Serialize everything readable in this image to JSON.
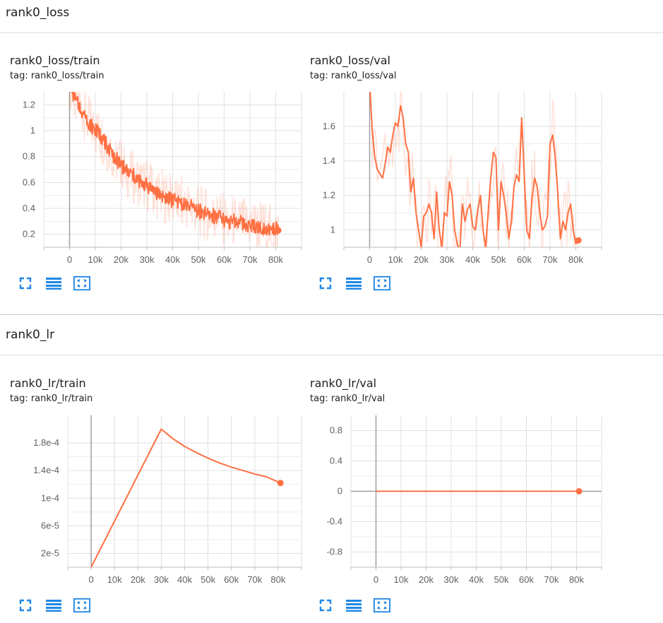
{
  "accent": "#ff7043",
  "icon_color": "#1e88e5",
  "sections": [
    {
      "title": "rank0_loss"
    },
    {
      "title": "rank0_lr"
    }
  ],
  "cards": [
    {
      "title": "rank0_loss/train",
      "tag": "tag: rank0_loss/train"
    },
    {
      "title": "rank0_loss/val",
      "tag": "tag: rank0_loss/val"
    },
    {
      "title": "rank0_lr/train",
      "tag": "tag: rank0_lr/train"
    },
    {
      "title": "rank0_lr/val",
      "tag": "tag: rank0_lr/val"
    }
  ],
  "card_buttons": [
    "fullscreen-icon",
    "data-table-icon",
    "fit-domain-icon"
  ],
  "chart_data": [
    {
      "type": "line",
      "title": "rank0_loss/train",
      "xlim": [
        -10000,
        90000
      ],
      "ylim": [
        0.1,
        1.3
      ],
      "x_ticks": [
        0,
        10000,
        20000,
        30000,
        40000,
        50000,
        60000,
        70000,
        80000
      ],
      "x_tick_labels": [
        "0",
        "10k",
        "20k",
        "30k",
        "40k",
        "50k",
        "60k",
        "70k",
        "80k"
      ],
      "y_ticks": [
        0.2,
        0.4,
        0.6,
        0.8,
        1,
        1.2
      ],
      "y_tick_labels": [
        "0.2",
        "0.4",
        "0.6",
        "0.8",
        "1",
        "1.2"
      ],
      "grid": true,
      "smoothed": true,
      "series": [
        {
          "x": [
            0,
            2000,
            4000,
            6000,
            8000,
            10000,
            12000,
            14000,
            16000,
            18000,
            20000,
            22000,
            24000,
            26000,
            28000,
            30000,
            32000,
            34000,
            36000,
            38000,
            40000,
            42000,
            44000,
            46000,
            48000,
            50000,
            52000,
            54000,
            56000,
            58000,
            60000,
            62000,
            64000,
            66000,
            68000,
            70000,
            72000,
            74000,
            76000,
            78000,
            80000,
            81000
          ],
          "values": [
            1.38,
            1.24,
            1.18,
            1.12,
            1.05,
            1.0,
            0.97,
            0.9,
            0.84,
            0.78,
            0.74,
            0.69,
            0.66,
            0.63,
            0.6,
            0.58,
            0.55,
            0.52,
            0.5,
            0.48,
            0.46,
            0.45,
            0.44,
            0.42,
            0.4,
            0.38,
            0.36,
            0.35,
            0.34,
            0.33,
            0.31,
            0.3,
            0.3,
            0.29,
            0.28,
            0.27,
            0.27,
            0.26,
            0.25,
            0.24,
            0.24,
            0.23
          ]
        }
      ]
    },
    {
      "type": "line",
      "title": "rank0_loss/val",
      "xlim": [
        -10000,
        90000
      ],
      "ylim": [
        0.9,
        1.8
      ],
      "x_ticks": [
        0,
        10000,
        20000,
        30000,
        40000,
        50000,
        60000,
        70000,
        80000
      ],
      "x_tick_labels": [
        "0",
        "10k",
        "20k",
        "30k",
        "40k",
        "50k",
        "60k",
        "70k",
        "80k"
      ],
      "y_ticks": [
        1,
        1.2,
        1.4,
        1.6
      ],
      "y_tick_labels": [
        "1",
        "1.2",
        "1.4",
        "1.6"
      ],
      "grid": true,
      "smoothed": true,
      "series": [
        {
          "x": [
            0,
            1000,
            2000,
            3000,
            5000,
            6000,
            7000,
            8000,
            9000,
            10000,
            11000,
            12000,
            13000,
            14000,
            15000,
            16000,
            17000,
            18000,
            19000,
            20000,
            21000,
            22000,
            23000,
            24000,
            25000,
            26000,
            27000,
            28000,
            29000,
            30000,
            31000,
            32000,
            33000,
            34000,
            35000,
            36000,
            37000,
            38000,
            39000,
            40000,
            41000,
            42000,
            43000,
            44000,
            45000,
            46000,
            47000,
            48000,
            49000,
            50000,
            51000,
            52000,
            53000,
            54000,
            55000,
            56000,
            57000,
            58000,
            59000,
            60000,
            61000,
            62000,
            63000,
            64000,
            65000,
            66000,
            67000,
            68000,
            69000,
            70000,
            71000,
            72000,
            73000,
            74000,
            75000,
            76000,
            77000,
            78000,
            79000,
            80000,
            81000
          ],
          "values": [
            1.85,
            1.58,
            1.42,
            1.35,
            1.3,
            1.38,
            1.48,
            1.45,
            1.55,
            1.62,
            1.6,
            1.72,
            1.65,
            1.5,
            1.45,
            1.22,
            1.3,
            1.1,
            1.0,
            0.9,
            1.08,
            1.1,
            1.15,
            1.1,
            0.95,
            1.22,
            1.0,
            0.9,
            1.1,
            1.08,
            1.28,
            1.2,
            1.0,
            0.92,
            0.88,
            1.15,
            1.05,
            1.12,
            1.15,
            1.02,
            1.0,
            1.12,
            1.2,
            1.0,
            0.9,
            1.1,
            1.3,
            1.45,
            1.42,
            1.0,
            1.28,
            1.2,
            1.1,
            0.95,
            1.05,
            1.25,
            1.32,
            1.28,
            1.65,
            1.32,
            1.0,
            0.95,
            1.18,
            1.3,
            1.25,
            1.1,
            1.0,
            1.02,
            1.08,
            1.5,
            1.55,
            1.42,
            1.22,
            0.95,
            1.05,
            1.0,
            1.1,
            1.15,
            1.0,
            0.92,
            0.94
          ]
        }
      ]
    },
    {
      "type": "line",
      "title": "rank0_lr/train",
      "xlim": [
        -10000,
        90000
      ],
      "ylim": [
        0,
        0.00022
      ],
      "x_ticks": [
        0,
        10000,
        20000,
        30000,
        40000,
        50000,
        60000,
        70000,
        80000
      ],
      "x_tick_labels": [
        "0",
        "10k",
        "20k",
        "30k",
        "40k",
        "50k",
        "60k",
        "70k",
        "80k"
      ],
      "y_ticks": [
        2e-05,
        6e-05,
        0.0001,
        0.00014,
        0.00018
      ],
      "y_tick_labels": [
        "2e-5",
        "6e-5",
        "1e-4",
        "1.4e-4",
        "1.8e-4"
      ],
      "grid": true,
      "series": [
        {
          "x": [
            0,
            30000,
            35000,
            40000,
            45000,
            50000,
            55000,
            60000,
            65000,
            70000,
            75000,
            81000
          ],
          "values": [
            0,
            0.0002,
            0.000186,
            0.000175,
            0.000166,
            0.000158,
            0.000151,
            0.000145,
            0.00014,
            0.000135,
            0.000131,
            0.000122
          ]
        }
      ]
    },
    {
      "type": "line",
      "title": "rank0_lr/val",
      "xlim": [
        -10000,
        90000
      ],
      "ylim": [
        -1,
        1
      ],
      "x_ticks": [
        0,
        10000,
        20000,
        30000,
        40000,
        50000,
        60000,
        70000,
        80000
      ],
      "x_tick_labels": [
        "0",
        "10k",
        "20k",
        "30k",
        "40k",
        "50k",
        "60k",
        "70k",
        "80k"
      ],
      "y_ticks": [
        -0.8,
        -0.4,
        0,
        0.4,
        0.8
      ],
      "y_tick_labels": [
        "-0.8",
        "-0.4",
        "0",
        "0.4",
        "0.8"
      ],
      "grid": true,
      "series": [
        {
          "x": [
            0,
            81000
          ],
          "values": [
            0,
            0
          ]
        }
      ]
    }
  ]
}
